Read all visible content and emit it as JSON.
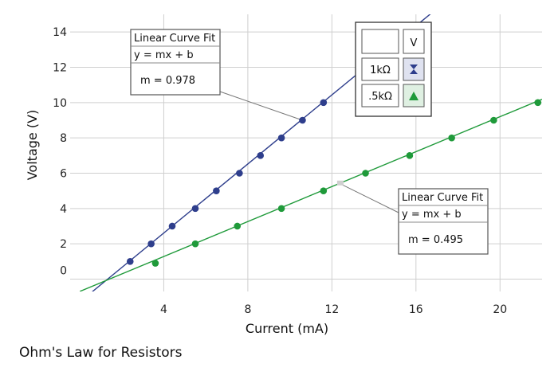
{
  "chart_data": {
    "type": "scatter",
    "xlabel": "Current (mA)",
    "ylabel": "Voltage (V)",
    "xlim": [
      0,
      22
    ],
    "ylim": [
      -0.7,
      15
    ],
    "x_ticks": [
      4,
      8,
      12,
      16,
      20
    ],
    "y_ticks": [
      0,
      2,
      4,
      6,
      8,
      10,
      12,
      14
    ],
    "grid": true,
    "legend_position": "top-right",
    "legend_header": "V",
    "series": [
      {
        "name": "1kΩ",
        "color": "#2e3e8c",
        "marker": "circle",
        "x": [
          2.4,
          3.4,
          4.4,
          5.5,
          6.5,
          7.6,
          8.6,
          9.6,
          10.6,
          11.6
        ],
        "y": [
          1.0,
          2.0,
          3.0,
          4.0,
          5.0,
          6.0,
          7.0,
          8.0,
          9.0,
          10.0
        ],
        "fit": {
          "slope": 0.978,
          "intercept": -1.3
        }
      },
      {
        "name": ".5kΩ",
        "color": "#1f9a3a",
        "marker": "circle",
        "x": [
          3.6,
          5.5,
          7.5,
          9.6,
          11.6,
          13.6,
          15.7,
          17.7,
          19.7,
          21.8
        ],
        "y": [
          0.9,
          2.0,
          3.0,
          4.0,
          5.0,
          6.0,
          7.0,
          8.0,
          9.0,
          10.0
        ],
        "fit": {
          "slope": 0.495,
          "intercept": -0.7
        }
      }
    ],
    "annotations": [
      {
        "title": "Linear Curve Fit",
        "equation": "y = mx + b",
        "param": "m = 0.978",
        "series": 0,
        "point_x": 10.6,
        "point_y": 9.0
      },
      {
        "title": "Linear Curve Fit",
        "equation": "y = mx + b",
        "param": "m = 0.495",
        "series": 1,
        "point_x": 12.4,
        "point_y": 5.4
      }
    ]
  },
  "caption": "Ohm's Law for Resistors"
}
